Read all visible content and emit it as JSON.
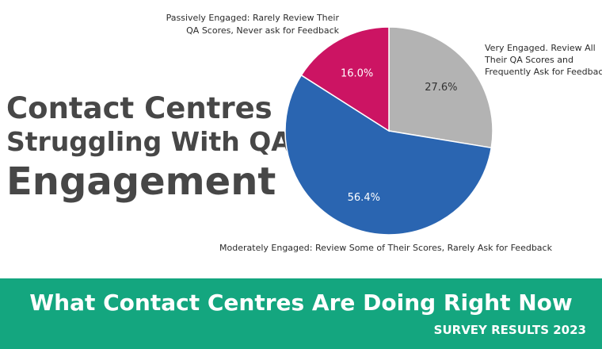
{
  "headline": {
    "line1": "Contact Centres",
    "line2": "Struggling With QA",
    "line3": "Engagement"
  },
  "chart_data": {
    "type": "pie",
    "categories": [
      "Very Engaged. Review All Their QA Scores and Frequently Ask for Feedback",
      "Moderately Engaged: Review Some of Their Scores, Rarely Ask for Feedback",
      "Passively Engaged: Rarely Review Their QA Scores, Never ask for Feedback"
    ],
    "values": [
      27.6,
      56.4,
      16.0
    ],
    "value_labels": [
      "27.6%",
      "56.4%",
      "16.0%"
    ],
    "colors": [
      "#b3b3b3",
      "#2a65b1",
      "#cc1463"
    ],
    "label_colors": [
      "#333333",
      "#ffffff",
      "#ffffff"
    ],
    "outer_labels": [
      [
        "Very Engaged. Review All",
        "Their QA Scores and",
        "Frequently Ask for Feedback"
      ],
      [
        "Moderately Engaged: Review Some of Their Scores, Rarely Ask for Feedback"
      ],
      [
        "Passively Engaged: Rarely Review Their",
        "QA Scores, Never ask for Feedback"
      ]
    ]
  },
  "footer": {
    "title": "What Contact Centres Are Doing Right Now",
    "subtitle": "SURVEY RESULTS 2023",
    "color": "#14a67f"
  }
}
